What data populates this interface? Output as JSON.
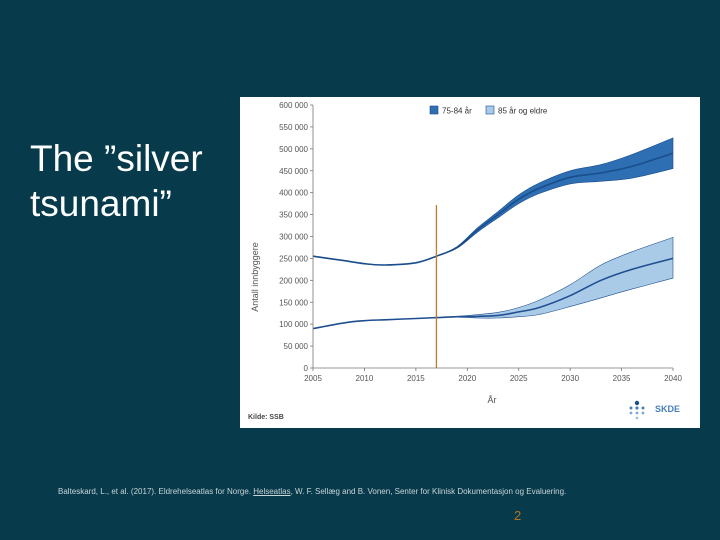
{
  "slide": {
    "title_line1": "The ”silver",
    "title_line2": "tsunami”",
    "citation_part1": "Balteskard, L., et al. (2017). Eldrehelseatlas for Norge. ",
    "citation_link": "Helseatlas",
    "citation_part2": ", W. F. Sellæg and B. Vonen, Senter for Klinisk Dokumentasjon og Evaluering.",
    "page_number": "2",
    "source": "Kilde: SSB",
    "logo_text": "SKDE"
  },
  "colors": {
    "background": "#073a4b",
    "series1_band": "#2e6fb3",
    "series1_line": "#1a4d8c",
    "series2_band": "#a9cbe8",
    "series2_line": "#1f4f90",
    "marker_line": "#c27a2e",
    "axis_text": "#555555"
  },
  "chart_data": {
    "type": "area",
    "title": "",
    "xlabel": "År",
    "ylabel": "Antall innbyggere",
    "xlim": [
      2005,
      2040
    ],
    "ylim": [
      0,
      600000
    ],
    "x_ticks": [
      2005,
      2010,
      2015,
      2020,
      2025,
      2030,
      2035,
      2040
    ],
    "y_ticks": [
      0,
      50000,
      100000,
      150000,
      200000,
      250000,
      300000,
      350000,
      400000,
      450000,
      500000,
      550000,
      600000
    ],
    "y_tick_labels": [
      "0",
      "50 000",
      "100 000",
      "150 000",
      "200 000",
      "250 000",
      "300 000",
      "350 000",
      "400 000",
      "450 000",
      "500 000",
      "550 000",
      "600 000"
    ],
    "legend_position": "top",
    "grid": false,
    "marker_line_x": 2017,
    "series": [
      {
        "name": "75-84 år",
        "x": [
          2005,
          2008,
          2010,
          2012,
          2015,
          2017,
          2019,
          2021,
          2023,
          2025,
          2027,
          2030,
          2033,
          2036,
          2040
        ],
        "values": [
          255000,
          245000,
          238000,
          235000,
          240000,
          255000,
          275000,
          315000,
          350000,
          385000,
          410000,
          435000,
          445000,
          460000,
          490000
        ],
        "lower": [
          255000,
          245000,
          238000,
          235000,
          240000,
          255000,
          273000,
          310000,
          343000,
          375000,
          398000,
          420000,
          426000,
          433000,
          455000
        ],
        "upper": [
          255000,
          245000,
          238000,
          235000,
          240000,
          255000,
          277000,
          320000,
          357000,
          395000,
          422000,
          450000,
          464000,
          487000,
          525000
        ]
      },
      {
        "name": "85 år og eldre",
        "x": [
          2005,
          2008,
          2010,
          2012,
          2015,
          2017,
          2019,
          2021,
          2023,
          2025,
          2027,
          2030,
          2033,
          2036,
          2040
        ],
        "values": [
          90000,
          103000,
          108000,
          110000,
          113000,
          115000,
          117000,
          118000,
          120000,
          128000,
          138000,
          165000,
          200000,
          225000,
          250000
        ],
        "lower": [
          90000,
          103000,
          108000,
          110000,
          113000,
          115000,
          116000,
          114000,
          114000,
          117000,
          122000,
          140000,
          160000,
          180000,
          205000
        ],
        "upper": [
          90000,
          103000,
          108000,
          110000,
          113000,
          115000,
          118000,
          122000,
          127000,
          138000,
          155000,
          190000,
          235000,
          265000,
          298000
        ]
      }
    ]
  }
}
